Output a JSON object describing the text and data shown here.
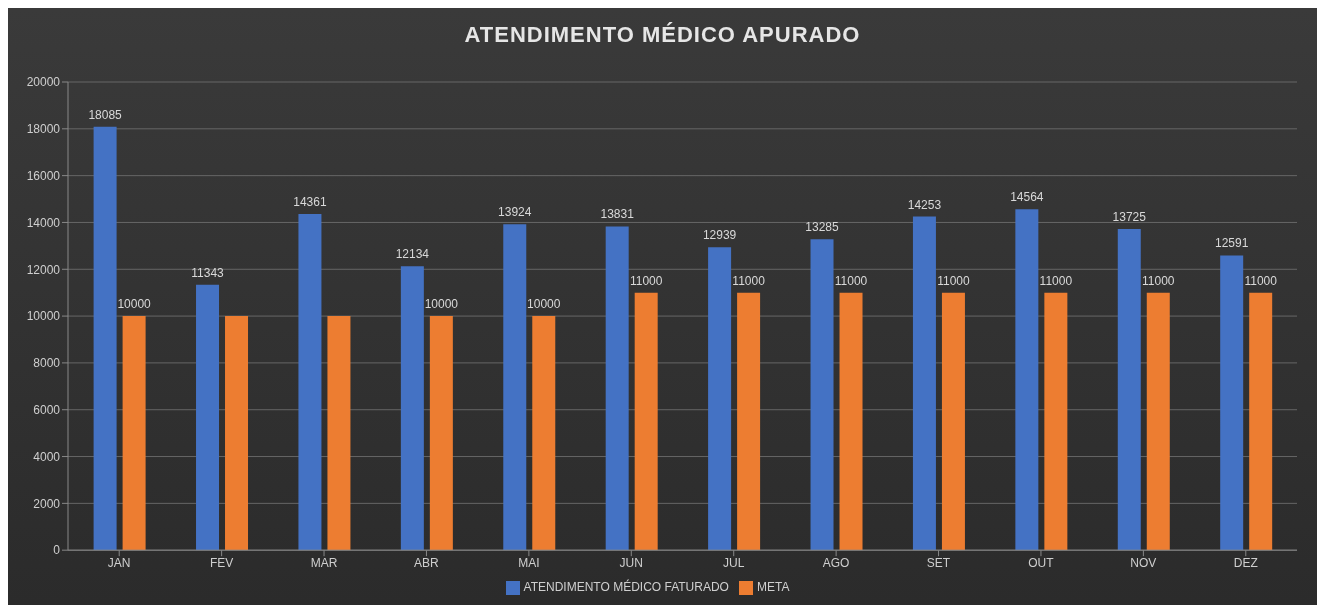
{
  "chart_data": {
    "type": "bar",
    "title": "ATENDIMENTO MÉDICO APURADO",
    "categories": [
      "JAN",
      "FEV",
      "MAR",
      "ABR",
      "MAI",
      "JUN",
      "JUL",
      "AGO",
      "SET",
      "OUT",
      "NOV",
      "DEZ"
    ],
    "series": [
      {
        "name": "ATENDIMENTO MÉDICO FATURADO",
        "color": "#4472c4",
        "values": [
          18085,
          11343,
          14361,
          12134,
          13924,
          13831,
          12939,
          13285,
          14253,
          14564,
          13725,
          12591
        ],
        "value_labels": [
          "18085",
          "11343",
          "14361",
          "12134",
          "13924",
          "13831",
          "12939",
          "13285",
          "14253",
          "14564",
          "13725",
          "12591"
        ]
      },
      {
        "name": "META",
        "color": "#ed7d31",
        "values": [
          10000,
          10000,
          10000,
          10000,
          10000,
          11000,
          11000,
          11000,
          11000,
          11000,
          11000,
          11000
        ],
        "value_labels": [
          "10000",
          null,
          null,
          "10000",
          "10000",
          "11000",
          "11000",
          "11000",
          "11000",
          "11000",
          "11000",
          "11000"
        ]
      }
    ],
    "ylim": [
      0,
      20000
    ],
    "yticks": [
      0,
      2000,
      4000,
      6000,
      8000,
      10000,
      12000,
      14000,
      16000,
      18000,
      20000
    ],
    "grid": "y",
    "legend": "bottom"
  }
}
